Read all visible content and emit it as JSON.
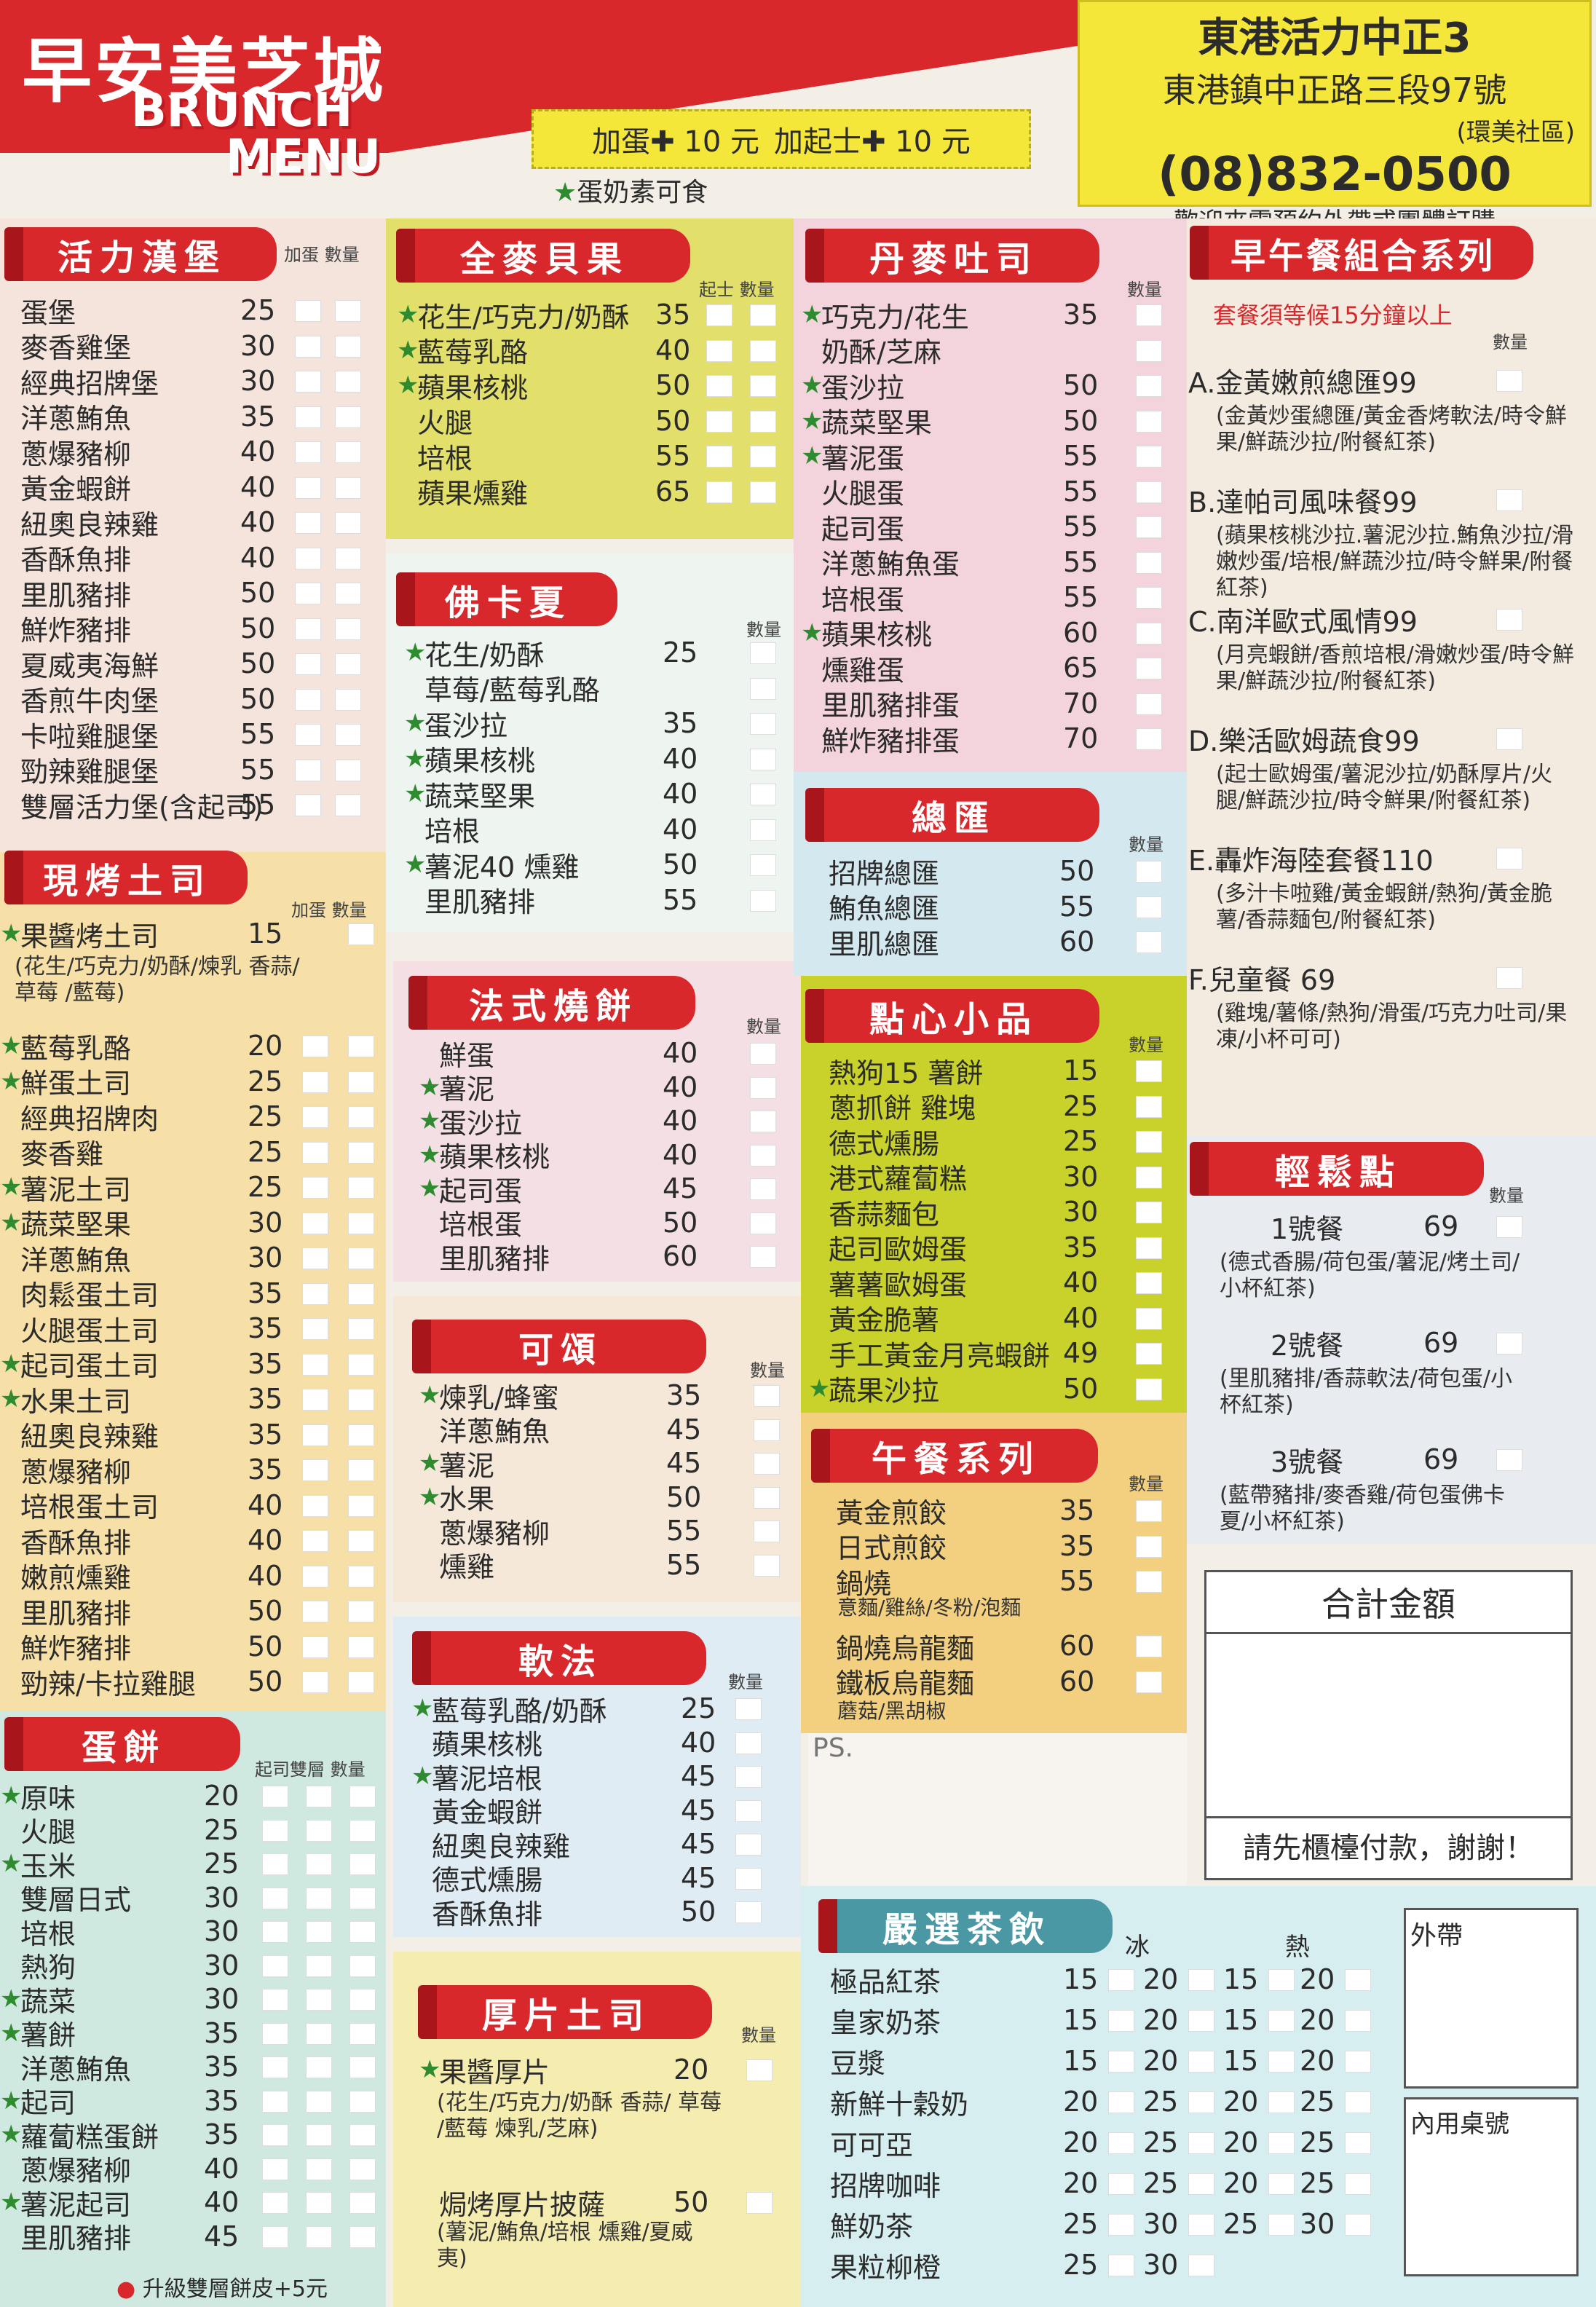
{
  "header": {
    "brand": "早安美芝城",
    "brand_en_1": "BRUNCH",
    "brand_en_2": "MENU",
    "addon_egg": "加蛋✚ 10 元",
    "addon_cheese": "加起士✚ 10 元",
    "veg_note": "蛋奶素可食",
    "store_name": "東港活力中正3",
    "store_address": "東港鎮中正路三段97號",
    "store_community": "(環美社區)",
    "phone": "(08)832-0500",
    "welcome": "歡迎來電預約外帶或團體訂購"
  },
  "labels": {
    "qty": "數量",
    "add_egg_qty": "加蛋 數量",
    "cheese_qty": "起士 數量",
    "cheese_double_qty": "起司雙層 數量",
    "ice": "冰",
    "hot": "熱",
    "total": "合計金額",
    "pay_first": "請先櫃檯付款，謝謝！",
    "takeout": "外帶",
    "dine_in": "內用桌號",
    "ps": "PS.",
    "upgrade": "升級雙層餅皮+5元",
    "combo_note": "套餐須等候15分鐘以上"
  },
  "sections": {
    "burger": {
      "title": "活力漢堡",
      "items": [
        {
          "name": "蛋堡",
          "price": "25",
          "veg": false
        },
        {
          "name": "麥香雞堡",
          "price": "30",
          "veg": false
        },
        {
          "name": "經典招牌堡",
          "price": "30",
          "veg": false
        },
        {
          "name": "洋蔥鮪魚",
          "price": "35",
          "veg": false
        },
        {
          "name": "蔥爆豬柳",
          "price": "40",
          "veg": false
        },
        {
          "name": "黃金蝦餅",
          "price": "40",
          "veg": false
        },
        {
          "name": "紐奧良辣雞",
          "price": "40",
          "veg": false
        },
        {
          "name": "香酥魚排",
          "price": "40",
          "veg": false
        },
        {
          "name": "里肌豬排",
          "price": "50",
          "veg": false
        },
        {
          "name": "鮮炸豬排",
          "price": "50",
          "veg": false
        },
        {
          "name": "夏威夷海鮮",
          "price": "50",
          "veg": false
        },
        {
          "name": "香煎牛肉堡",
          "price": "50",
          "veg": false
        },
        {
          "name": "卡啦雞腿堡",
          "price": "55",
          "veg": false
        },
        {
          "name": "勁辣雞腿堡",
          "price": "55",
          "veg": false
        },
        {
          "name": "雙層活力堡(含起司)",
          "price": "55",
          "veg": false
        }
      ]
    },
    "toast": {
      "title": "現烤土司",
      "first": {
        "name": "果醬烤土司",
        "price": "15",
        "veg": true
      },
      "first_note": "(花生/巧克力/奶酥/煉乳 香蒜/ 草莓 /藍莓)",
      "items": [
        {
          "name": "藍莓乳酪",
          "price": "20",
          "veg": true
        },
        {
          "name": "鮮蛋土司",
          "price": "25",
          "veg": true
        },
        {
          "name": "經典招牌肉",
          "price": "25",
          "veg": false
        },
        {
          "name": "麥香雞",
          "price": "25",
          "veg": false
        },
        {
          "name": "薯泥土司",
          "price": "25",
          "veg": true
        },
        {
          "name": "蔬菜堅果",
          "price": "30",
          "veg": true
        },
        {
          "name": "洋蔥鮪魚",
          "price": "30",
          "veg": false
        },
        {
          "name": "肉鬆蛋土司",
          "price": "35",
          "veg": false
        },
        {
          "name": "火腿蛋土司",
          "price": "35",
          "veg": false
        },
        {
          "name": "起司蛋土司",
          "price": "35",
          "veg": true
        },
        {
          "name": "水果土司",
          "price": "35",
          "veg": true
        },
        {
          "name": "紐奧良辣雞",
          "price": "35",
          "veg": false
        },
        {
          "name": "蔥爆豬柳",
          "price": "35",
          "veg": false
        },
        {
          "name": "培根蛋土司",
          "price": "40",
          "veg": false
        },
        {
          "name": "香酥魚排",
          "price": "40",
          "veg": false
        },
        {
          "name": "嫩煎燻雞",
          "price": "40",
          "veg": false
        },
        {
          "name": "里肌豬排",
          "price": "50",
          "veg": false
        },
        {
          "name": "鮮炸豬排",
          "price": "50",
          "veg": false
        },
        {
          "name": "勁辣/卡拉雞腿",
          "price": "50",
          "veg": false
        }
      ]
    },
    "eggpancake": {
      "title": "蛋餅",
      "items": [
        {
          "name": "原味",
          "price": "20",
          "veg": true
        },
        {
          "name": "火腿",
          "price": "25",
          "veg": false
        },
        {
          "name": "玉米",
          "price": "25",
          "veg": true
        },
        {
          "name": "雙層日式",
          "price": "30",
          "veg": false
        },
        {
          "name": "培根",
          "price": "30",
          "veg": false
        },
        {
          "name": "熱狗",
          "price": "30",
          "veg": false
        },
        {
          "name": "蔬菜",
          "price": "30",
          "veg": true
        },
        {
          "name": "薯餅",
          "price": "35",
          "veg": true
        },
        {
          "name": "洋蔥鮪魚",
          "price": "35",
          "veg": false
        },
        {
          "name": "起司",
          "price": "35",
          "veg": true
        },
        {
          "name": "蘿蔔糕蛋餅",
          "price": "35",
          "veg": true
        },
        {
          "name": "蔥爆豬柳",
          "price": "40",
          "veg": false
        },
        {
          "name": "薯泥起司",
          "price": "40",
          "veg": true
        },
        {
          "name": "里肌豬排",
          "price": "45",
          "veg": false
        }
      ]
    },
    "bagel": {
      "title": "全麥貝果",
      "items": [
        {
          "name": "花生/巧克力/奶酥",
          "price": "35",
          "veg": true
        },
        {
          "name": "藍莓乳酪",
          "price": "40",
          "veg": true
        },
        {
          "name": "蘋果核桃",
          "price": "50",
          "veg": true
        },
        {
          "name": "火腿",
          "price": "50",
          "veg": false
        },
        {
          "name": "培根",
          "price": "55",
          "veg": false
        },
        {
          "name": "蘋果燻雞",
          "price": "65",
          "veg": false
        }
      ]
    },
    "crepe": {
      "title": "佛卡夏",
      "items": [
        {
          "name": "花生/奶酥",
          "price": "25",
          "veg": true
        },
        {
          "name": "草莓/藍莓乳酪",
          "price": "",
          "veg": false
        },
        {
          "name": "蛋沙拉",
          "price": "35",
          "veg": true
        },
        {
          "name": "蘋果核桃",
          "price": "40",
          "veg": true
        },
        {
          "name": "蔬菜堅果",
          "price": "40",
          "veg": true
        },
        {
          "name": "培根",
          "price": "40",
          "veg": false
        },
        {
          "name": "薯泥40  燻雞",
          "price": "50",
          "veg": true
        },
        {
          "name": "里肌豬排",
          "price": "55",
          "veg": false
        }
      ]
    },
    "waffle": {
      "title": "法式燒餅",
      "items": [
        {
          "name": "鮮蛋",
          "price": "40",
          "veg": false
        },
        {
          "name": "薯泥",
          "price": "40",
          "veg": true
        },
        {
          "name": "蛋沙拉",
          "price": "40",
          "veg": true
        },
        {
          "name": "蘋果核桃",
          "price": "40",
          "veg": true
        },
        {
          "name": "起司蛋",
          "price": "45",
          "veg": true
        },
        {
          "name": "培根蛋",
          "price": "50",
          "veg": false
        },
        {
          "name": "里肌豬排",
          "price": "60",
          "veg": false
        }
      ]
    },
    "croissant": {
      "title": "可頌",
      "items": [
        {
          "name": "煉乳/蜂蜜",
          "price": "35",
          "veg": true
        },
        {
          "name": "洋蔥鮪魚",
          "price": "45",
          "veg": false
        },
        {
          "name": "薯泥",
          "price": "45",
          "veg": true
        },
        {
          "name": "水果",
          "price": "50",
          "veg": true
        },
        {
          "name": "蔥爆豬柳",
          "price": "55",
          "veg": false
        },
        {
          "name": "燻雞",
          "price": "55",
          "veg": false
        }
      ]
    },
    "softfrench": {
      "title": "軟法",
      "items": [
        {
          "name": "藍莓乳酪/奶酥",
          "price": "25",
          "veg": true
        },
        {
          "name": "蘋果核桃",
          "price": "40",
          "veg": false
        },
        {
          "name": "薯泥培根",
          "price": "45",
          "veg": true
        },
        {
          "name": "黃金蝦餅",
          "price": "45",
          "veg": false
        },
        {
          "name": "紐奧良辣雞",
          "price": "45",
          "veg": false
        },
        {
          "name": "德式燻腸",
          "price": "45",
          "veg": false
        },
        {
          "name": "香酥魚排",
          "price": "50",
          "veg": false
        }
      ]
    },
    "thicktoast": {
      "title": "厚片土司",
      "first": {
        "name": "果醬厚片",
        "price": "20",
        "veg": true
      },
      "first_note": "(花生/巧克力/奶酥 香蒜/ 草莓 /藍莓 煉乳/芝麻)",
      "second": {
        "name": "焗烤厚片披薩",
        "price": "50",
        "veg": false
      },
      "second_note": "(薯泥/鮪魚/培根 燻雞/夏威夷)"
    },
    "danish": {
      "title": "丹麥吐司",
      "items": [
        {
          "name": "巧克力/花生",
          "price": "35",
          "veg": true
        },
        {
          "name": "奶酥/芝麻",
          "price": "",
          "veg": false
        },
        {
          "name": "蛋沙拉",
          "price": "50",
          "veg": true
        },
        {
          "name": "蔬菜堅果",
          "price": "50",
          "veg": true
        },
        {
          "name": "薯泥蛋",
          "price": "55",
          "veg": true
        },
        {
          "name": "火腿蛋",
          "price": "55",
          "veg": false
        },
        {
          "name": "起司蛋",
          "price": "55",
          "veg": false
        },
        {
          "name": "洋蔥鮪魚蛋",
          "price": "55",
          "veg": false
        },
        {
          "name": "培根蛋",
          "price": "55",
          "veg": false
        },
        {
          "name": "蘋果核桃",
          "price": "60",
          "veg": true
        },
        {
          "name": "燻雞蛋",
          "price": "65",
          "veg": false
        },
        {
          "name": "里肌豬排蛋",
          "price": "70",
          "veg": false
        },
        {
          "name": "鮮炸豬排蛋",
          "price": "70",
          "veg": false
        }
      ]
    },
    "clubs": {
      "title": "總匯",
      "items": [
        {
          "name": "招牌總匯",
          "price": "50",
          "veg": false
        },
        {
          "name": "鮪魚總匯",
          "price": "55",
          "veg": false
        },
        {
          "name": "里肌總匯",
          "price": "60",
          "veg": false
        }
      ]
    },
    "snacks": {
      "title": "點心小品",
      "items": [
        {
          "name": "熱狗15  薯餅",
          "price": "15",
          "veg": false
        },
        {
          "name": "蔥抓餅  雞塊",
          "price": "25",
          "veg": false
        },
        {
          "name": "德式燻腸",
          "price": "25",
          "veg": false
        },
        {
          "name": "港式蘿蔔糕",
          "price": "30",
          "veg": false
        },
        {
          "name": "香蒜麵包",
          "price": "30",
          "veg": false
        },
        {
          "name": "起司歐姆蛋",
          "price": "35",
          "veg": false
        },
        {
          "name": "薯薯歐姆蛋",
          "price": "40",
          "veg": false
        },
        {
          "name": "黃金脆薯",
          "price": "40",
          "veg": false
        },
        {
          "name": "手工黃金月亮蝦餅",
          "price": "49",
          "veg": false
        },
        {
          "name": "蔬果沙拉",
          "price": "50",
          "veg": true
        }
      ]
    },
    "lunch": {
      "title": "午餐系列",
      "items": [
        {
          "name": "黃金煎餃",
          "price": "35",
          "veg": false
        },
        {
          "name": "日式煎餃",
          "price": "35",
          "veg": false
        },
        {
          "name": "鍋燒",
          "price": "55",
          "veg": false
        }
      ],
      "lunch_note1": "意麵/雞絲/冬粉/泡麵",
      "items2": [
        {
          "name": "鍋燒烏龍麵",
          "price": "60",
          "veg": false
        },
        {
          "name": "鐵板烏龍麵",
          "price": "60",
          "veg": false
        }
      ],
      "lunch_note2": "蘑菇/黑胡椒"
    },
    "combos": {
      "title": "早午餐組合系列",
      "items": [
        {
          "name": "A.金黃嫩煎總匯99",
          "note": "(金黃炒蛋總匯/黃金香烤軟法/時令鮮果/鮮蔬沙拉/附餐紅茶)"
        },
        {
          "name": "B.達帕司風味餐99",
          "note": "(蘋果核桃沙拉.薯泥沙拉.鮪魚沙拉/滑嫩炒蛋/培根/鮮蔬沙拉/時令鮮果/附餐紅茶)"
        },
        {
          "name": "C.南洋歐式風情99",
          "note": "(月亮蝦餅/香煎培根/滑嫩炒蛋/時令鮮果/鮮蔬沙拉/附餐紅茶)"
        },
        {
          "name": "D.樂活歐姆蔬食99",
          "note": "(起士歐姆蛋/薯泥沙拉/奶酥厚片/火腿/鮮蔬沙拉/時令鮮果/附餐紅茶)"
        },
        {
          "name": "E.轟炸海陸套餐110",
          "note": "(多汁卡啦雞/黃金蝦餅/熱狗/黃金脆薯/香蒜麵包/附餐紅茶)"
        },
        {
          "name": "F.兒童餐    69",
          "note": "(雞塊/薯條/熱狗/滑蛋/巧克力吐司/果凍/小杯可可)"
        }
      ]
    },
    "relax": {
      "title": "輕鬆點",
      "items": [
        {
          "name": "1號餐",
          "price": "69",
          "note": "(德式香腸/荷包蛋/薯泥/烤土司/小杯紅茶)"
        },
        {
          "name": "2號餐",
          "price": "69",
          "note": "(里肌豬排/香蒜軟法/荷包蛋/小杯紅茶)"
        },
        {
          "name": "3號餐",
          "price": "69",
          "note": "(藍帶豬排/麥香雞/荷包蛋佛卡夏/小杯紅茶)"
        }
      ]
    },
    "drinks": {
      "title": "嚴選茶飲",
      "items": [
        {
          "name": "極品紅茶",
          "ice_m": "15",
          "ice_l": "20",
          "hot_m": "15",
          "hot_l": "20"
        },
        {
          "name": "皇家奶茶",
          "ice_m": "15",
          "ice_l": "20",
          "hot_m": "15",
          "hot_l": "20"
        },
        {
          "name": "豆漿",
          "ice_m": "15",
          "ice_l": "20",
          "hot_m": "15",
          "hot_l": "20"
        },
        {
          "name": "新鮮十穀奶",
          "ice_m": "20",
          "ice_l": "25",
          "hot_m": "20",
          "hot_l": "25"
        },
        {
          "name": "可可亞",
          "ice_m": "20",
          "ice_l": "25",
          "hot_m": "20",
          "hot_l": "25"
        },
        {
          "name": "招牌咖啡",
          "ice_m": "20",
          "ice_l": "25",
          "hot_m": "20",
          "hot_l": "25"
        },
        {
          "name": "鮮奶茶",
          "ice_m": "25",
          "ice_l": "30",
          "hot_m": "25",
          "hot_l": "30"
        },
        {
          "name": "果粒柳橙",
          "ice_m": "25",
          "ice_l": "30",
          "hot_m": "",
          "hot_l": ""
        }
      ]
    }
  }
}
